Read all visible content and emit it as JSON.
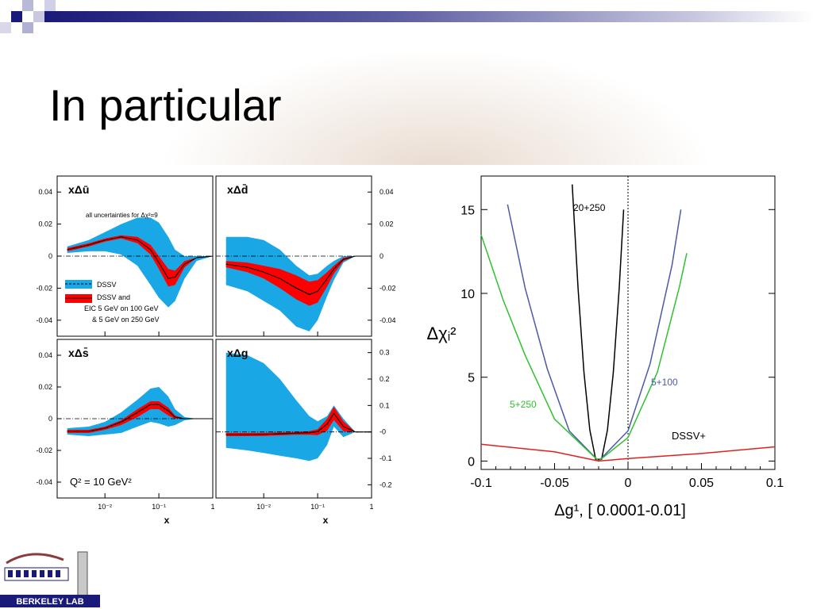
{
  "slide": {
    "title": "In particular"
  },
  "colors": {
    "band_dssv": "#1aa7e6",
    "band_eic": "#ff0000",
    "curve_20_250": "#000000",
    "curve_5_100": "#4a5aa8",
    "curve_5_250": "#2ec22e",
    "curve_dssv": "#e02020",
    "header_bar": "#1a1a7a"
  },
  "logo": {
    "text": "BERKELEY LAB",
    "icon": "berkeley-lab-logo-icon"
  },
  "chart_data": [
    {
      "type": "area",
      "panel": "xΔū",
      "label": "xΔū",
      "note": "all uncertainties for Δχ²=9",
      "ylim": [
        -0.05,
        0.05
      ],
      "yticks": [
        "0.04",
        "0.02",
        "0",
        "-0.02",
        "-0.04"
      ],
      "legend": [
        "DSSV",
        "DSSV and",
        "EIC 5 GeV on 100 GeV",
        "& 5 GeV on 250 GeV"
      ],
      "x": [
        0.002,
        0.005,
        0.01,
        0.02,
        0.04,
        0.07,
        0.1,
        0.15,
        0.2,
        0.3,
        0.5,
        1
      ],
      "central": [
        0.004,
        0.007,
        0.01,
        0.012,
        0.01,
        0.004,
        -0.004,
        -0.014,
        -0.013,
        -0.005,
        -0.001,
        0
      ],
      "dssv_upper": [
        0.006,
        0.01,
        0.015,
        0.02,
        0.024,
        0.024,
        0.021,
        0.012,
        0.004,
        0,
        0,
        0
      ],
      "dssv_lower": [
        0.002,
        0.003,
        0.003,
        0.001,
        -0.006,
        -0.018,
        -0.026,
        -0.032,
        -0.028,
        -0.014,
        -0.003,
        0
      ],
      "eic_upper": [
        0.005,
        0.008,
        0.011,
        0.013,
        0.012,
        0.007,
        0,
        -0.008,
        -0.009,
        -0.003,
        -0.001,
        0
      ],
      "eic_lower": [
        0.003,
        0.006,
        0.009,
        0.011,
        0.008,
        0.001,
        -0.008,
        -0.019,
        -0.018,
        -0.007,
        -0.001,
        0
      ]
    },
    {
      "type": "area",
      "panel": "xΔd̄",
      "label": "xΔd̄",
      "ylim": [
        -0.05,
        0.05
      ],
      "yticks": [
        "0.04",
        "0.02",
        "0",
        "-0.02",
        "-0.04"
      ],
      "x": [
        0.002,
        0.005,
        0.01,
        0.02,
        0.04,
        0.07,
        0.1,
        0.15,
        0.2,
        0.3,
        0.5,
        1
      ],
      "central": [
        -0.005,
        -0.007,
        -0.01,
        -0.014,
        -0.02,
        -0.024,
        -0.022,
        -0.014,
        -0.008,
        -0.002,
        0,
        0
      ],
      "dssv_upper": [
        0.012,
        0.012,
        0.01,
        0.004,
        -0.006,
        -0.012,
        -0.011,
        -0.006,
        -0.003,
        0,
        0,
        0
      ],
      "dssv_lower": [
        -0.018,
        -0.022,
        -0.028,
        -0.034,
        -0.044,
        -0.047,
        -0.04,
        -0.025,
        -0.015,
        -0.004,
        0,
        0
      ],
      "eic_upper": [
        -0.003,
        -0.004,
        -0.006,
        -0.008,
        -0.012,
        -0.016,
        -0.015,
        -0.01,
        -0.006,
        -0.001,
        0,
        0
      ],
      "eic_lower": [
        -0.007,
        -0.01,
        -0.014,
        -0.02,
        -0.027,
        -0.031,
        -0.029,
        -0.019,
        -0.011,
        -0.003,
        0,
        0
      ]
    },
    {
      "type": "area",
      "panel": "xΔs̄",
      "label": "xΔs̄",
      "annotation": "Q² = 10 GeV²",
      "xlabel": "x",
      "xticks": [
        "10⁻²",
        "10⁻¹",
        "1"
      ],
      "ylim": [
        -0.05,
        0.05
      ],
      "yticks": [
        "0.04",
        "0.02",
        "0",
        "-0.02",
        "-0.04"
      ],
      "x": [
        0.002,
        0.005,
        0.01,
        0.02,
        0.04,
        0.07,
        0.1,
        0.15,
        0.2,
        0.3,
        0.5,
        1
      ],
      "central": [
        -0.008,
        -0.008,
        -0.006,
        -0.002,
        0.004,
        0.009,
        0.009,
        0.005,
        0.001,
        0,
        0,
        0
      ],
      "dssv_upper": [
        -0.006,
        -0.005,
        -0.002,
        0.004,
        0.012,
        0.019,
        0.02,
        0.014,
        0.006,
        0.001,
        0,
        0
      ],
      "dssv_lower": [
        -0.01,
        -0.011,
        -0.01,
        -0.009,
        -0.005,
        -0.002,
        -0.003,
        -0.005,
        -0.004,
        -0.001,
        0,
        0
      ],
      "eic_upper": [
        -0.007,
        -0.007,
        -0.005,
        -0.001,
        0.006,
        0.011,
        0.011,
        0.007,
        0.002,
        0,
        0,
        0
      ],
      "eic_lower": [
        -0.009,
        -0.009,
        -0.007,
        -0.004,
        0.001,
        0.006,
        0.006,
        0.002,
        0,
        0,
        0,
        0
      ]
    },
    {
      "type": "area",
      "panel": "xΔg",
      "label": "xΔg",
      "xlabel": "x",
      "xticks": [
        "10⁻²",
        "10⁻¹",
        "1"
      ],
      "ylim": [
        -0.25,
        0.35
      ],
      "yticks": [
        "0.3",
        "0.2",
        "0.1",
        "-0",
        "-0.1",
        "-0.2"
      ],
      "x": [
        0.002,
        0.005,
        0.01,
        0.02,
        0.04,
        0.07,
        0.1,
        0.15,
        0.2,
        0.3,
        0.5,
        1
      ],
      "central": [
        -0.01,
        -0.01,
        -0.009,
        -0.007,
        -0.005,
        -0.003,
        0.002,
        0.03,
        0.07,
        0.02,
        0,
        0
      ],
      "dssv_upper": [
        0.3,
        0.29,
        0.26,
        0.2,
        0.12,
        0.06,
        0.04,
        0.06,
        0.1,
        0.05,
        0,
        0
      ],
      "dssv_lower": [
        -0.06,
        -0.07,
        -0.08,
        -0.09,
        -0.1,
        -0.11,
        -0.1,
        -0.05,
        0.02,
        -0.02,
        0,
        0
      ],
      "eic_upper": [
        -0.004,
        -0.004,
        -0.003,
        -0.002,
        0,
        0.003,
        0.01,
        0.05,
        0.095,
        0.04,
        0,
        0
      ],
      "eic_lower": [
        -0.016,
        -0.016,
        -0.015,
        -0.013,
        -0.011,
        -0.011,
        -0.012,
        0.005,
        0.045,
        0.003,
        0,
        0
      ]
    },
    {
      "type": "line",
      "panel": "Δχ² scan",
      "xlabel": "Δg¹, [ 0.0001-0.01]",
      "ylabel": "Δχᵢ²",
      "xlim": [
        -0.1,
        0.1
      ],
      "ylim": [
        -0.5,
        17
      ],
      "xticks": [
        "-0.1",
        "-0.05",
        "0",
        "0.05",
        "0.1"
      ],
      "yticks": [
        "0",
        "5",
        "10",
        "15"
      ],
      "series": [
        {
          "name": "20+250",
          "x": [
            -0.038,
            -0.034,
            -0.03,
            -0.026,
            -0.022,
            -0.018,
            -0.014,
            -0.01,
            -0.006,
            -0.003
          ],
          "y": [
            16.5,
            10.3,
            5.3,
            1.85,
            0.1,
            0.1,
            1.85,
            5.3,
            10.3,
            15.0
          ]
        },
        {
          "name": "5+100",
          "x": [
            -0.082,
            -0.07,
            -0.055,
            -0.04,
            -0.02,
            0,
            0.015,
            0.03,
            0.036
          ],
          "y": [
            15.3,
            10.3,
            5.5,
            1.8,
            0,
            1.8,
            5.8,
            11.7,
            15.0
          ]
        },
        {
          "name": "5+250",
          "x": [
            -0.1,
            -0.085,
            -0.07,
            -0.05,
            -0.02,
            0,
            0.02,
            0.035,
            0.04
          ],
          "y": [
            13.5,
            9.6,
            6.3,
            2.5,
            0,
            1.4,
            5.3,
            10.4,
            12.4
          ]
        },
        {
          "name": "DSSV+",
          "x": [
            -0.1,
            -0.05,
            -0.02,
            0,
            0.05,
            0.1
          ],
          "y": [
            1.0,
            0.55,
            0,
            0.15,
            0.45,
            0.85
          ]
        }
      ]
    }
  ]
}
